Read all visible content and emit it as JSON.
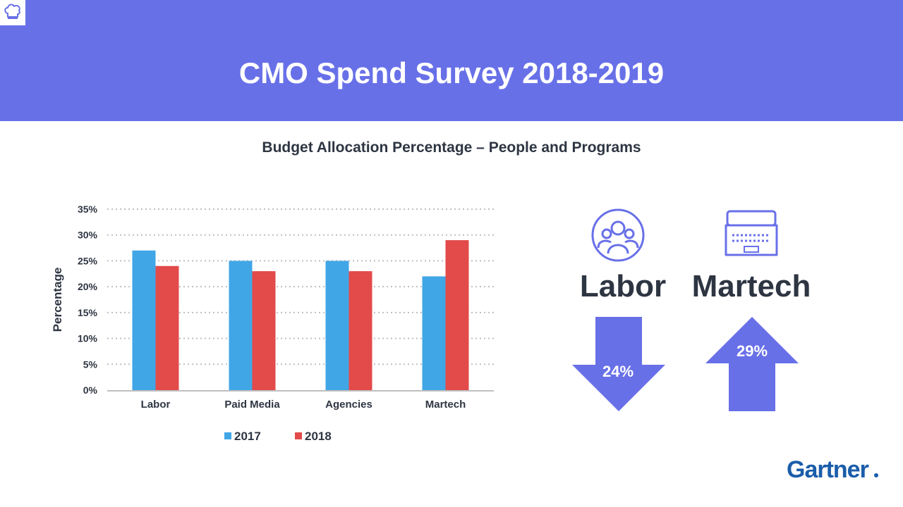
{
  "header": {
    "title": "CMO Spend Survey 2018-2019",
    "background": "#6870E8"
  },
  "subtitle": "Budget Allocation Percentage – People and Programs",
  "chart_data": {
    "type": "bar",
    "categories": [
      "Labor",
      "Paid Media",
      "Agencies",
      "Martech"
    ],
    "series": [
      {
        "name": "2017",
        "color": "#41A6E6",
        "values": [
          27,
          25,
          25,
          22
        ]
      },
      {
        "name": "2018",
        "color": "#E34A4A",
        "values": [
          24,
          23,
          23,
          29
        ]
      }
    ],
    "ylabel": "Percentage",
    "yticks": [
      "0%",
      "5%",
      "10%",
      "15%",
      "20%",
      "25%",
      "30%",
      "35%"
    ],
    "ylim": [
      0,
      35
    ],
    "grid": true,
    "legend_position": "bottom"
  },
  "callouts": {
    "labor": {
      "label": "Labor",
      "value": "24%",
      "direction": "down",
      "icon": "people-group-icon"
    },
    "martech": {
      "label": "Martech",
      "value": "29%",
      "direction": "up",
      "icon": "laptop-icon"
    }
  },
  "brand": {
    "name": "Gartner",
    "color": "#1A5DAA"
  },
  "colors": {
    "accent": "#6870E8",
    "text": "#2E3542"
  }
}
